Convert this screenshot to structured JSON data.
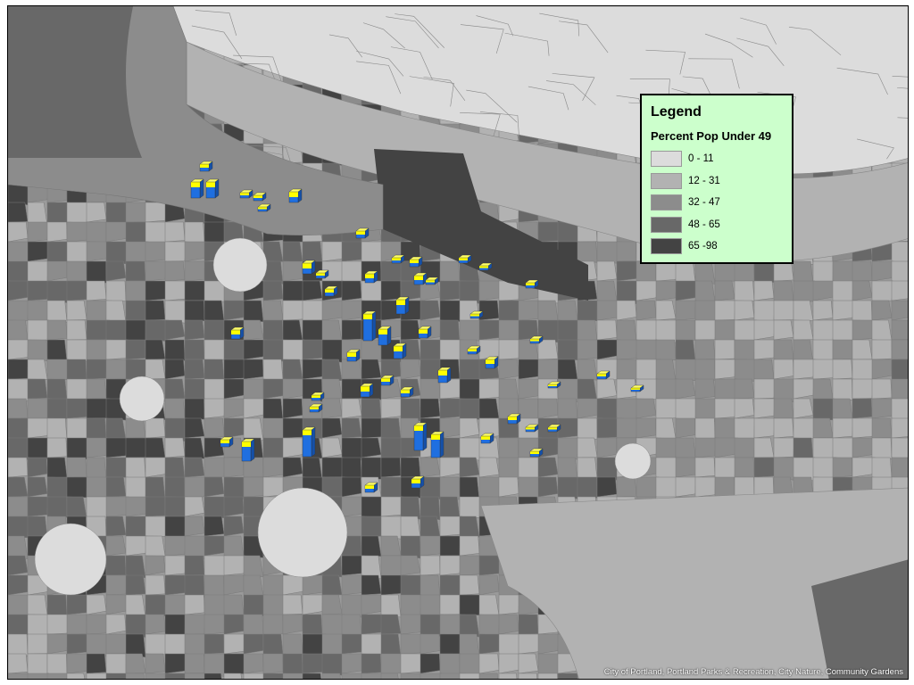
{
  "legend": {
    "title": "Legend",
    "subtitle": "Percent Pop Under 49",
    "classes": [
      {
        "label": "0 - 11",
        "color": "#dcdcdc"
      },
      {
        "label": "12 - 31",
        "color": "#b2b2b2"
      },
      {
        "label": "32 - 47",
        "color": "#8c8c8c"
      },
      {
        "label": "48 - 65",
        "color": "#686868"
      },
      {
        "label": "65 -98",
        "color": "#434343"
      }
    ]
  },
  "symbol_colors": {
    "bar_side": "#1f6fe0",
    "bar_top": "#ffff00"
  },
  "credit": "City of Portland, Portland Parks & Recreation, City Nature, Community Gardens"
}
